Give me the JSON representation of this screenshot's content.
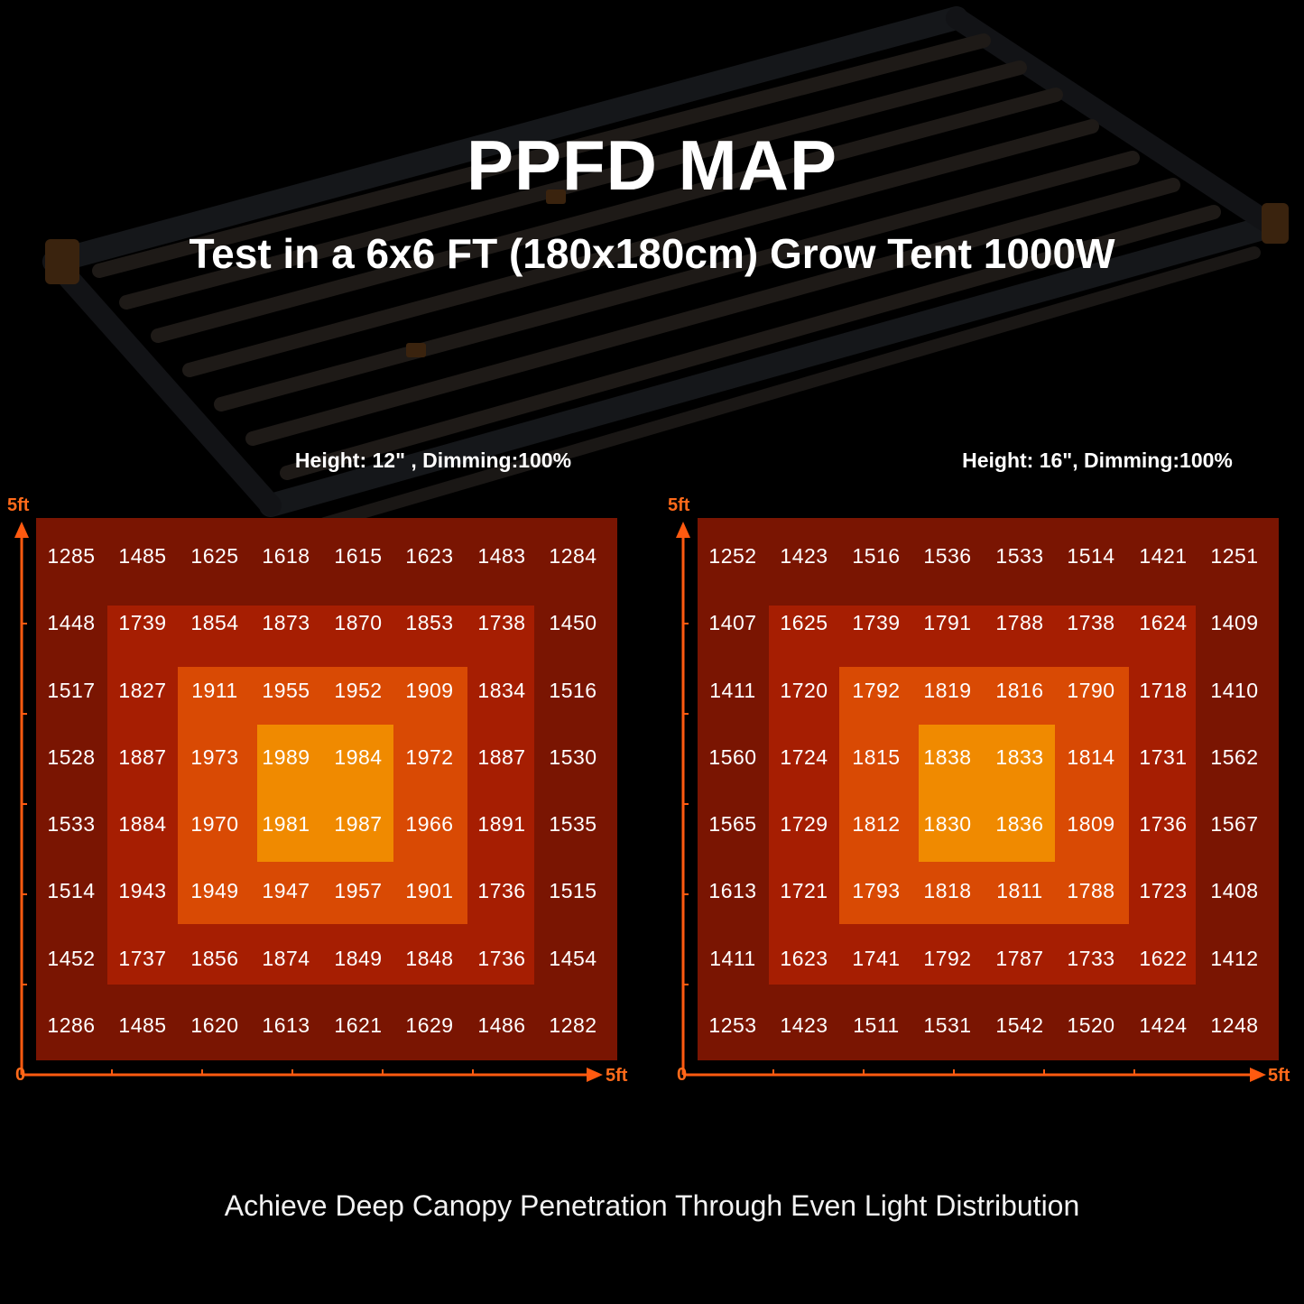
{
  "title": "PPFD MAP",
  "subtitle": "Test in a 6x6 FT (180x180cm) Grow Tent 1000W",
  "footer": "Achieve Deep Canopy Penetration Through Even Light Distribution",
  "colors": {
    "axis": "#ff5a10",
    "ring_outer": "#7a1502",
    "ring_2": "#a61e02",
    "ring_3": "#d94a04",
    "ring_center": "#f08a00"
  },
  "chart_data": [
    {
      "type": "heatmap",
      "title": "Height: 12\" , Dimming:100%",
      "x_axis": {
        "min_label": "0",
        "max_label": "5ft"
      },
      "y_axis": {
        "max_label": "5ft"
      },
      "rows": [
        [
          "1285",
          "1485",
          "1625",
          "1618",
          "1615",
          "1623",
          "1483",
          "1284"
        ],
        [
          "1448",
          "1739",
          "1854",
          "1873",
          "1870",
          "1853",
          "1738",
          "1450"
        ],
        [
          "1517",
          "1827",
          "1911",
          "1955",
          "1952",
          "1909",
          "1834",
          "1516"
        ],
        [
          "1528",
          "1887",
          "1973",
          "1989",
          "1984",
          "1972",
          "1887",
          "1530"
        ],
        [
          "1533",
          "1884",
          "1970",
          "1981",
          "1987",
          "1966",
          "1891",
          "1535"
        ],
        [
          "1514",
          "1943",
          "1949",
          "1947",
          "1957",
          "1901",
          "1736",
          "1515"
        ],
        [
          "1452",
          "1737",
          "1856",
          "1874",
          "1849",
          "1848",
          "1736",
          "1454"
        ],
        [
          "1286",
          "1485",
          "1620",
          "1613",
          "1621",
          "1629",
          "1486",
          "1282"
        ]
      ]
    },
    {
      "type": "heatmap",
      "title": "Height: 16\", Dimming:100%",
      "x_axis": {
        "min_label": "0",
        "max_label": "5ft"
      },
      "y_axis": {
        "max_label": "5ft"
      },
      "rows": [
        [
          "1252",
          "1423",
          "1516",
          "1536",
          "1533",
          "1514",
          "1421",
          "1251"
        ],
        [
          "1407",
          "1625",
          "1739",
          "1791",
          "1788",
          "1738",
          "1624",
          "1409"
        ],
        [
          "1411",
          "1720",
          "1792",
          "1819",
          "1816",
          "1790",
          "1718",
          "1410"
        ],
        [
          "1560",
          "1724",
          "1815",
          "1838",
          "1833",
          "1814",
          "1731",
          "1562"
        ],
        [
          "1565",
          "1729",
          "1812",
          "1830",
          "1836",
          "1809",
          "1736",
          "1567"
        ],
        [
          "1613",
          "1721",
          "1793",
          "1818",
          "1811",
          "1788",
          "1723",
          "1408"
        ],
        [
          "1411",
          "1623",
          "1741",
          "1792",
          "1787",
          "1733",
          "1622",
          "1412"
        ],
        [
          "1253",
          "1423",
          "1511",
          "1531",
          "1542",
          "1520",
          "1424",
          "1248"
        ]
      ]
    }
  ]
}
